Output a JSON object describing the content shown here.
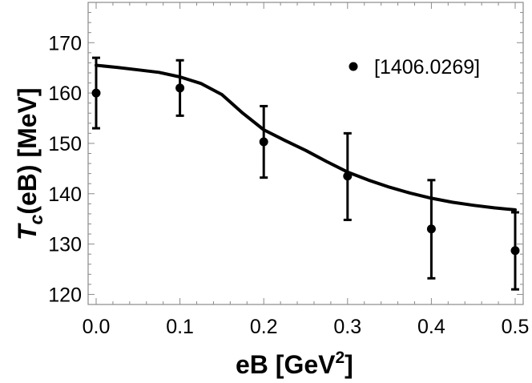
{
  "chart_data": {
    "type": "scatter",
    "xlabel": "eB [GeV",
    "xlabel_sup": "2",
    "xlabel_end": "]",
    "ylabel_main": "T",
    "ylabel_sub": "c",
    "ylabel_rest": "(eB) [MeV]",
    "xlim": [
      0.0,
      0.5
    ],
    "ylim": [
      118,
      178
    ],
    "xticks": [
      0.0,
      0.1,
      0.2,
      0.3,
      0.4,
      0.5
    ],
    "xtick_labels": [
      "0.0",
      "0.1",
      "0.2",
      "0.3",
      "0.4",
      "0.5"
    ],
    "yticks": [
      120,
      130,
      140,
      150,
      160,
      170
    ],
    "ytick_labels": [
      "120",
      "130",
      "140",
      "150",
      "160",
      "170"
    ],
    "grid": false,
    "legend_position": "top-right",
    "series": [
      {
        "name": "[1406.0269]",
        "style": "points-with-error-bars",
        "color": "#000000",
        "points": [
          {
            "x": 0.0,
            "y": 160.0,
            "ylow": 153.0,
            "yhigh": 167.0
          },
          {
            "x": 0.1,
            "y": 161.0,
            "ylow": 155.5,
            "yhigh": 166.5
          },
          {
            "x": 0.2,
            "y": 150.3,
            "ylow": 143.2,
            "yhigh": 157.4
          },
          {
            "x": 0.3,
            "y": 143.5,
            "ylow": 134.8,
            "yhigh": 152.0
          },
          {
            "x": 0.4,
            "y": 133.0,
            "ylow": 123.2,
            "yhigh": 142.7
          },
          {
            "x": 0.5,
            "y": 128.7,
            "ylow": 121.0,
            "yhigh": 136.3
          }
        ]
      },
      {
        "style": "line",
        "color": "#000000",
        "x": [
          0.0,
          0.025,
          0.05,
          0.075,
          0.1,
          0.125,
          0.15,
          0.175,
          0.2,
          0.225,
          0.25,
          0.275,
          0.3,
          0.325,
          0.35,
          0.375,
          0.4,
          0.425,
          0.45,
          0.475,
          0.5
        ],
        "y": [
          165.5,
          165.1,
          164.6,
          164.1,
          163.2,
          161.9,
          159.7,
          156.0,
          152.7,
          150.6,
          148.6,
          146.4,
          144.3,
          142.7,
          141.3,
          140.1,
          139.1,
          138.3,
          137.7,
          137.2,
          136.8
        ]
      }
    ]
  }
}
